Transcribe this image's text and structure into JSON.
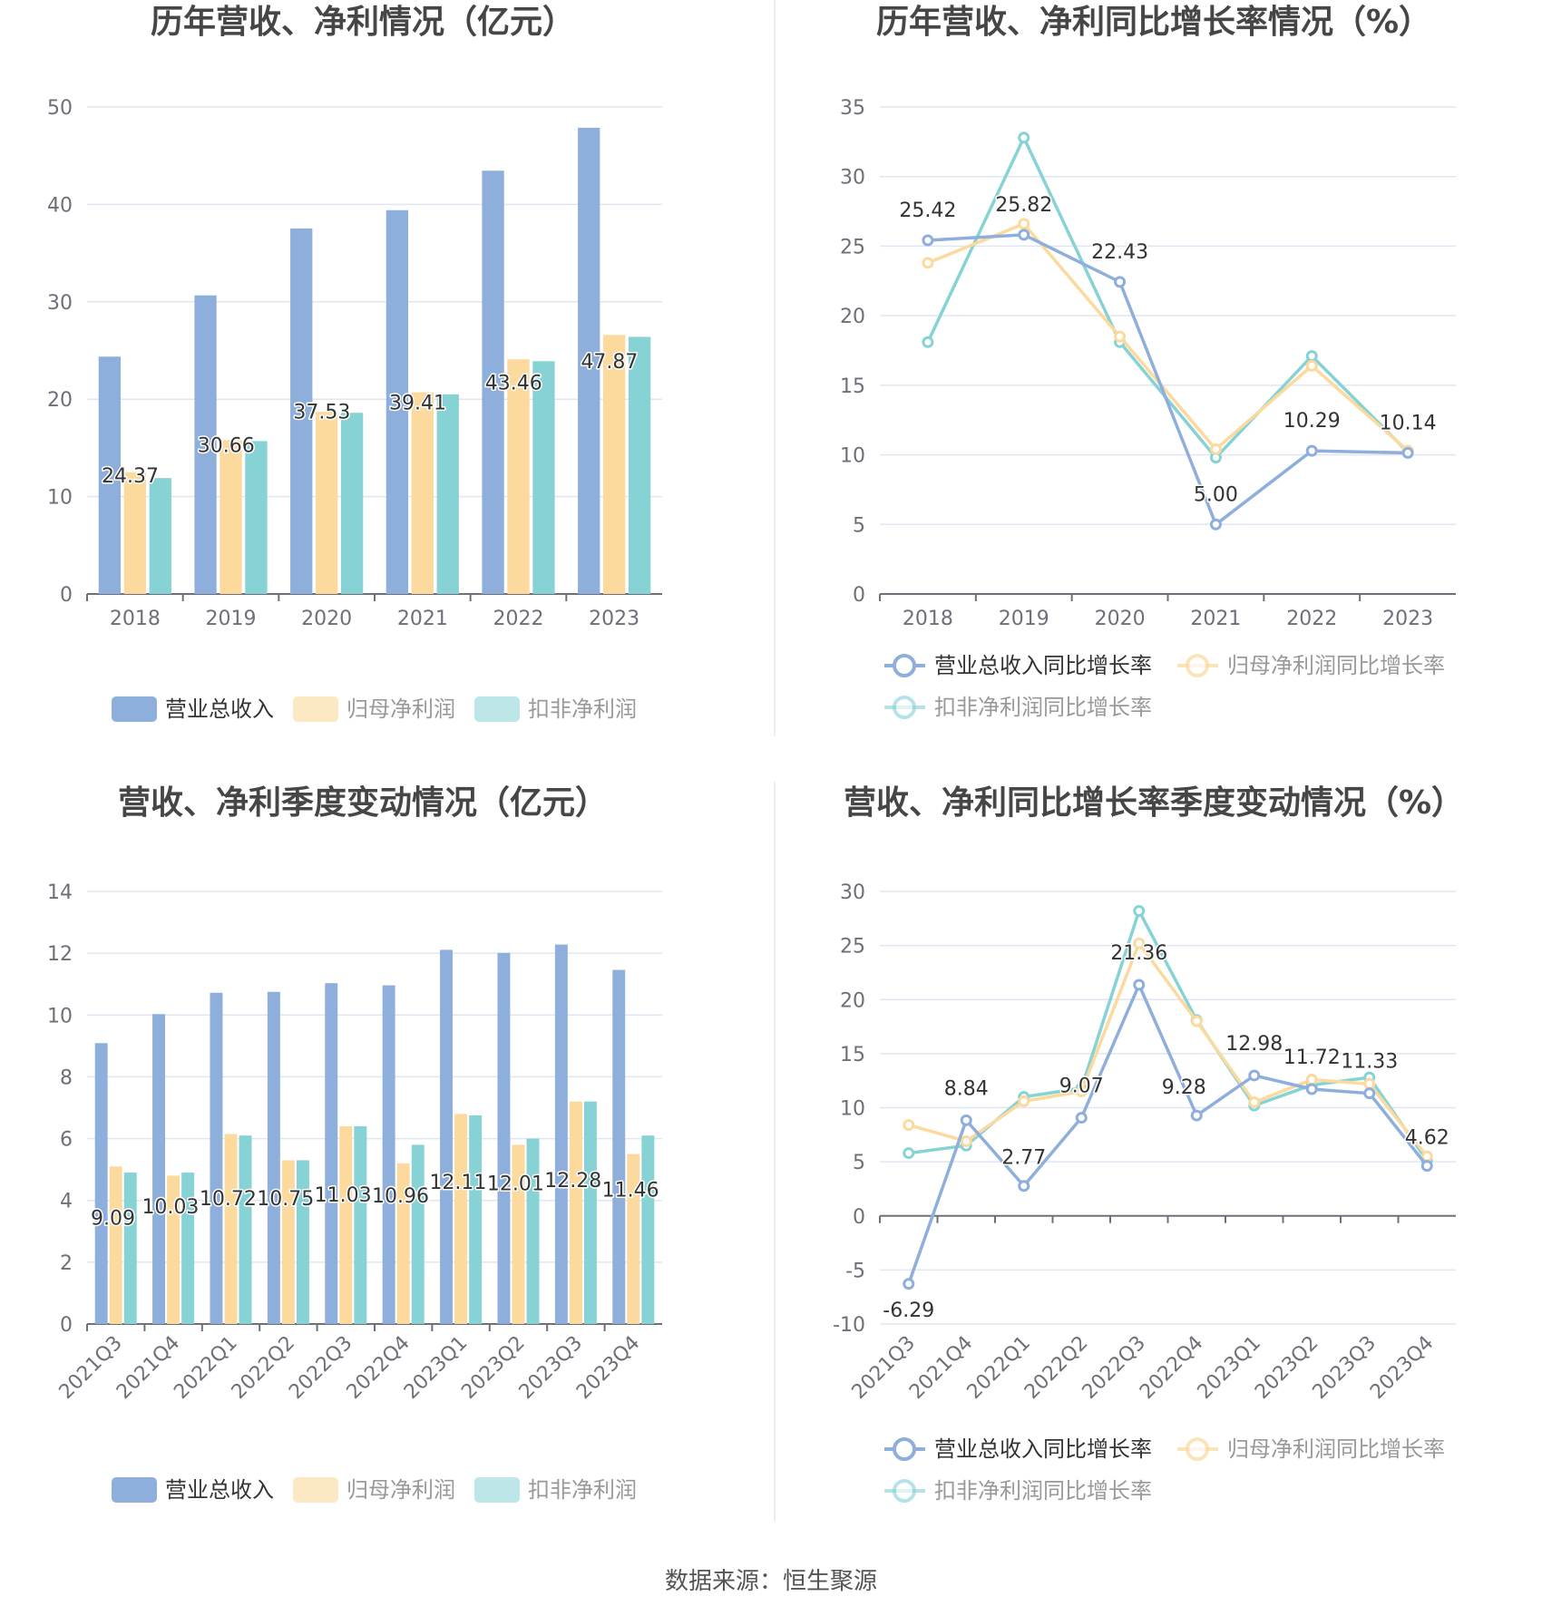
{
  "source": "数据来源：恒生聚源",
  "colors": {
    "revenue": "#8eaedb",
    "parent_net": "#fcd99d",
    "deducted_net": "#86d2d5"
  },
  "legend_bar": [
    "营业总收入",
    "归母净利润",
    "扣非净利润"
  ],
  "legend_line": [
    "营业总收入同比增长率",
    "归母净利润同比增长率",
    "扣非净利润同比增长率"
  ],
  "chart_data": [
    {
      "type": "bar",
      "title": "历年营收、净利情况（亿元）",
      "categories": [
        "2018",
        "2019",
        "2020",
        "2021",
        "2022",
        "2023"
      ],
      "ylim": [
        0,
        50
      ],
      "yticks": [
        0,
        10,
        20,
        30,
        40,
        50
      ],
      "series": [
        {
          "name": "营业总收入",
          "values": [
            24.37,
            30.66,
            37.53,
            39.41,
            43.46,
            47.87
          ]
        },
        {
          "name": "归母净利润",
          "values": [
            12.5,
            15.8,
            18.7,
            20.7,
            24.1,
            26.6
          ]
        },
        {
          "name": "扣非净利润",
          "values": [
            11.9,
            15.7,
            18.6,
            20.5,
            23.9,
            26.4
          ]
        }
      ],
      "data_labels": [
        "24.37",
        "30.66",
        "37.53",
        "39.41",
        "43.46",
        "47.87"
      ]
    },
    {
      "type": "line",
      "title": "历年营收、净利同比增长率情况（%）",
      "categories": [
        "2018",
        "2019",
        "2020",
        "2021",
        "2022",
        "2023"
      ],
      "ylim": [
        0,
        35
      ],
      "yticks": [
        0,
        5,
        10,
        15,
        20,
        25,
        30,
        35
      ],
      "series": [
        {
          "name": "营业总收入同比增长率",
          "values": [
            25.42,
            25.82,
            22.43,
            5.0,
            10.29,
            10.14
          ]
        },
        {
          "name": "归母净利润同比增长率",
          "values": [
            23.8,
            26.6,
            18.5,
            10.4,
            16.4,
            10.3
          ]
        },
        {
          "name": "扣非净利润同比增长率",
          "values": [
            18.1,
            32.8,
            18.1,
            9.8,
            17.1,
            10.2
          ]
        }
      ],
      "data_labels": [
        "25.42",
        "25.82",
        "22.43",
        "5.00",
        "10.29",
        "10.14"
      ]
    },
    {
      "type": "bar",
      "title": "营收、净利季度变动情况（亿元）",
      "categories": [
        "2021Q3",
        "2021Q4",
        "2022Q1",
        "2022Q2",
        "2022Q3",
        "2022Q4",
        "2023Q1",
        "2023Q2",
        "2023Q3",
        "2023Q4"
      ],
      "ylim": [
        0,
        14
      ],
      "yticks": [
        0,
        2,
        4,
        6,
        8,
        10,
        12,
        14
      ],
      "series": [
        {
          "name": "营业总收入",
          "values": [
            9.09,
            10.03,
            10.72,
            10.75,
            11.03,
            10.96,
            12.11,
            12.01,
            12.28,
            11.46
          ]
        },
        {
          "name": "归母净利润",
          "values": [
            5.1,
            4.8,
            6.15,
            5.3,
            6.4,
            5.2,
            6.8,
            5.8,
            7.2,
            5.5
          ]
        },
        {
          "name": "扣非净利润",
          "values": [
            4.9,
            4.9,
            6.1,
            5.3,
            6.4,
            5.8,
            6.75,
            6.0,
            7.2,
            6.1
          ]
        }
      ],
      "data_labels": [
        "9.09",
        "10.03",
        "10.72",
        "10.75",
        "11.03",
        "10.96",
        "12.11",
        "12.01",
        "12.28",
        "11.46"
      ]
    },
    {
      "type": "line",
      "title": "营收、净利同比增长率季度变动情况（%）",
      "categories": [
        "2021Q3",
        "2021Q4",
        "2022Q1",
        "2022Q2",
        "2022Q3",
        "2022Q4",
        "2023Q1",
        "2023Q2",
        "2023Q3",
        "2023Q4"
      ],
      "ylim": [
        -10,
        30
      ],
      "yticks": [
        -10,
        -5,
        0,
        5,
        10,
        15,
        20,
        25,
        30
      ],
      "series": [
        {
          "name": "营业总收入同比增长率",
          "values": [
            -6.29,
            8.84,
            2.77,
            9.07,
            21.36,
            9.28,
            12.98,
            11.72,
            11.33,
            4.62
          ]
        },
        {
          "name": "归母净利润同比增长率",
          "values": [
            8.4,
            6.9,
            10.6,
            11.5,
            25.2,
            18.0,
            10.5,
            12.6,
            12.2,
            5.5
          ]
        },
        {
          "name": "扣非净利润同比增长率",
          "values": [
            5.8,
            6.5,
            11.0,
            11.8,
            28.2,
            18.1,
            10.2,
            12.1,
            12.8,
            5.1
          ]
        }
      ],
      "data_labels": [
        "-6.29",
        "8.84",
        "2.77",
        "9.07",
        "21.36",
        "9.28",
        "12.98",
        "11.72",
        "11.33",
        "4.62"
      ]
    }
  ]
}
